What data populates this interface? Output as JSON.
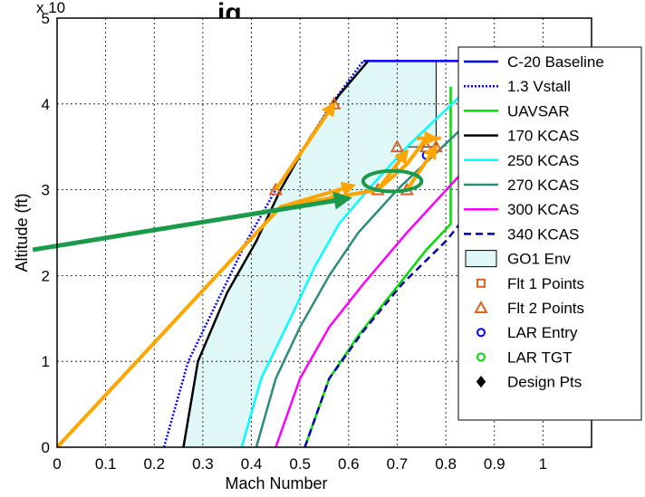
{
  "title_fragment": "ig.,",
  "chart_data": {
    "type": "line",
    "xlabel": "Mach Number",
    "ylabel": "Altitude (ft)",
    "y_multiplier_label": "x 10",
    "xlim": [
      0,
      1.1
    ],
    "ylim": [
      0,
      50000
    ],
    "x_ticks": [
      0,
      0.1,
      0.2,
      0.3,
      0.4,
      0.5,
      0.6,
      0.7,
      0.8,
      0.9,
      1
    ],
    "x_tick_labels": [
      "0",
      "0.1",
      "0.2",
      "0.3",
      "0.4",
      "0.5",
      "0.6",
      "0.7",
      "0.8",
      "0.9",
      "1"
    ],
    "y_ticks": [
      0,
      10000,
      20000,
      30000,
      40000,
      50000
    ],
    "y_tick_labels": [
      "0",
      "1",
      "2",
      "3",
      "4",
      "5"
    ],
    "grid": true,
    "legend_placement": "top-right",
    "series": [
      {
        "name": "C-20 Baseline",
        "color": "#0000ff",
        "dash": "solid",
        "points": [
          [
            0.63,
            45000
          ],
          [
            0.85,
            45000
          ],
          [
            0.85,
            28000
          ]
        ]
      },
      {
        "name": "1.3 Vstall",
        "color": "#0000ff",
        "dash": "dotted",
        "points": [
          [
            0.22,
            0
          ],
          [
            0.27,
            10000
          ],
          [
            0.33,
            17000
          ],
          [
            0.39,
            24000
          ],
          [
            0.45,
            30000
          ],
          [
            0.51,
            35000
          ],
          [
            0.565,
            40000
          ],
          [
            0.63,
            45000
          ]
        ]
      },
      {
        "name": "UAVSAR",
        "color": "#00dd00",
        "dash": "solid",
        "points": [
          [
            0.51,
            0
          ],
          [
            0.56,
            8000
          ],
          [
            0.62,
            13000
          ],
          [
            0.69,
            18000
          ],
          [
            0.76,
            23000
          ],
          [
            0.81,
            26000
          ],
          [
            0.81,
            42000
          ]
        ]
      },
      {
        "name": "170 KCAS",
        "color": "#000000",
        "dash": "solid",
        "points": [
          [
            0.26,
            0
          ],
          [
            0.29,
            10000
          ],
          [
            0.35,
            18000
          ],
          [
            0.41,
            24000
          ],
          [
            0.46,
            30000
          ],
          [
            0.52,
            36000
          ],
          [
            0.58,
            41000
          ],
          [
            0.64,
            45000
          ]
        ]
      },
      {
        "name": "250 KCAS",
        "color": "#00ffff",
        "dash": "solid",
        "points": [
          [
            0.38,
            0
          ],
          [
            0.42,
            8000
          ],
          [
            0.48,
            15000
          ],
          [
            0.53,
            21000
          ],
          [
            0.58,
            26000
          ],
          [
            0.64,
            30000
          ],
          [
            0.72,
            35000
          ],
          [
            0.85,
            42000
          ]
        ]
      },
      {
        "name": "270 KCAS",
        "color": "#2e8b7a",
        "dash": "solid",
        "points": [
          [
            0.41,
            0
          ],
          [
            0.45,
            8000
          ],
          [
            0.5,
            14000
          ],
          [
            0.56,
            20000
          ],
          [
            0.62,
            25000
          ],
          [
            0.7,
            30000
          ],
          [
            0.84,
            37500
          ]
        ]
      },
      {
        "name": "300 KCAS",
        "color": "#ff00ff",
        "dash": "solid",
        "points": [
          [
            0.45,
            0
          ],
          [
            0.5,
            8000
          ],
          [
            0.56,
            14000
          ],
          [
            0.63,
            19000
          ],
          [
            0.72,
            25000
          ],
          [
            0.85,
            33000
          ]
        ]
      },
      {
        "name": "340 KCAS",
        "color": "#0000aa",
        "dash": "dashed",
        "points": [
          [
            0.51,
            0
          ],
          [
            0.56,
            8000
          ],
          [
            0.63,
            13500
          ],
          [
            0.71,
            19000
          ],
          [
            0.8,
            24000
          ],
          [
            0.85,
            27500
          ]
        ]
      }
    ],
    "envelope": {
      "name": "GO1 Env",
      "fill": "#e0f7f7",
      "edge": "#000000",
      "points": [
        [
          0.26,
          0
        ],
        [
          0.29,
          10000
        ],
        [
          0.35,
          18000
        ],
        [
          0.41,
          24000
        ],
        [
          0.46,
          30000
        ],
        [
          0.52,
          36000
        ],
        [
          0.58,
          41000
        ],
        [
          0.64,
          45000
        ],
        [
          0.78,
          45000
        ],
        [
          0.78,
          35000
        ],
        [
          0.72,
          35000
        ],
        [
          0.64,
          30000
        ],
        [
          0.58,
          26000
        ],
        [
          0.53,
          21000
        ],
        [
          0.48,
          15000
        ],
        [
          0.42,
          8000
        ],
        [
          0.38,
          0
        ]
      ]
    },
    "markers": [
      {
        "name": "Flt 1 Points",
        "symbol": "square",
        "color": "#e06020",
        "points": []
      },
      {
        "name": "Flt 2 Points",
        "symbol": "triangle",
        "color": "#e06020",
        "points": [
          [
            0.45,
            30000
          ],
          [
            0.57,
            40000
          ],
          [
            0.66,
            30000
          ],
          [
            0.72,
            30000
          ],
          [
            0.7,
            35000
          ],
          [
            0.76,
            35000
          ],
          [
            0.78,
            35000
          ]
        ]
      },
      {
        "name": "LAR Entry",
        "symbol": "circle",
        "color": "#0000ff",
        "points": [
          [
            0.76,
            34000
          ]
        ]
      },
      {
        "name": "LAR TGT",
        "symbol": "circle",
        "color": "#00dd00",
        "points": []
      },
      {
        "name": "Design Pts",
        "symbol": "diamond",
        "color": "#000000",
        "points": []
      }
    ],
    "legend_entries": [
      "C-20 Baseline",
      "1.3 Vstall",
      "UAVSAR",
      "170 KCAS",
      "250 KCAS",
      "270 KCAS",
      "300 KCAS",
      "340 KCAS",
      "GO1 Env",
      "Flt 1 Points",
      "Flt 2 Points",
      "LAR Entry",
      "LAR TGT",
      "Design Pts"
    ],
    "annotations": {
      "orange_path": [
        [
          0,
          0
        ],
        [
          0.46,
          28000
        ],
        [
          0.66,
          30000
        ],
        [
          0.72,
          33000
        ],
        [
          0.76,
          36000
        ],
        [
          0.79,
          36000
        ]
      ],
      "orange_path_color": "#ffa500",
      "orange_arrows": [
        {
          "from": [
            0.45,
            30000
          ],
          "to": [
            0.57,
            40000
          ]
        },
        {
          "from": [
            0.46,
            28000
          ],
          "to": [
            0.61,
            30500
          ]
        },
        {
          "from": [
            0.66,
            30000
          ],
          "to": [
            0.56,
            29000
          ]
        },
        {
          "from": [
            0.66,
            30000
          ],
          "to": [
            0.72,
            34500
          ]
        },
        {
          "from": [
            0.72,
            30000
          ],
          "to": [
            0.78,
            35000
          ]
        },
        {
          "from": [
            0.74,
            36000
          ],
          "to": [
            0.78,
            36000
          ]
        }
      ],
      "green_arrow": {
        "from": [
          -0.05,
          23000
        ],
        "to": [
          0.6,
          29000
        ],
        "color": "#1a9a4a"
      },
      "green_ellipse": {
        "center": [
          0.69,
          31000
        ],
        "rx": 0.06,
        "ry": 1200,
        "color": "#1a9a4a"
      }
    }
  }
}
